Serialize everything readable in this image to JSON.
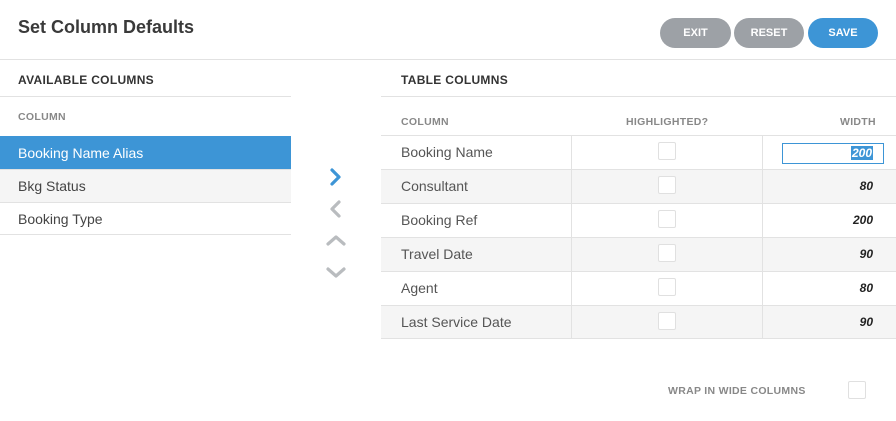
{
  "header": {
    "title": "Set Column Defaults",
    "exit_label": "EXIT",
    "reset_label": "RESET",
    "save_label": "SAVE"
  },
  "available": {
    "title": "AVAILABLE COLUMNS",
    "column_header": "COLUMN",
    "items": [
      {
        "label": "Booking Name Alias",
        "selected": true
      },
      {
        "label": "Bkg Status",
        "selected": false
      },
      {
        "label": "Booking Type",
        "selected": false
      }
    ]
  },
  "controls": {
    "move_right_icon": "chevron-right-icon",
    "move_left_icon": "chevron-left-icon",
    "move_up_icon": "chevron-up-icon",
    "move_down_icon": "chevron-down-icon",
    "active_color": "#3d95d6",
    "inactive_color": "#b9bcbf"
  },
  "table": {
    "title": "TABLE COLUMNS",
    "headers": {
      "column": "COLUMN",
      "highlighted": "HIGHLIGHTED?",
      "width": "WIDTH"
    },
    "rows": [
      {
        "name": "Booking Name",
        "highlighted": false,
        "width": "200",
        "editing": true
      },
      {
        "name": "Consultant",
        "highlighted": false,
        "width": "80"
      },
      {
        "name": "Booking Ref",
        "highlighted": false,
        "width": "200"
      },
      {
        "name": "Travel Date",
        "highlighted": false,
        "width": "90"
      },
      {
        "name": "Agent",
        "highlighted": false,
        "width": "80"
      },
      {
        "name": "Last Service Date",
        "highlighted": false,
        "width": "90"
      }
    ]
  },
  "options": {
    "wrap_label": "WRAP IN WIDE COLUMNS",
    "wrap_checked": false
  },
  "colors": {
    "accent": "#3d95d6",
    "secondary_button": "#9da1a6"
  }
}
